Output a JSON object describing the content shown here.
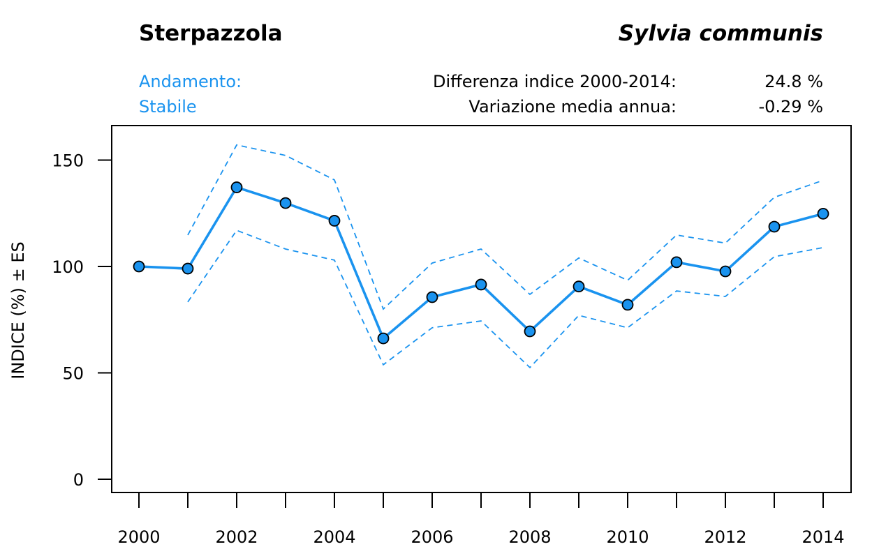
{
  "header": {
    "common_name": "Sterpazzola",
    "scientific_name": "Sylvia communis",
    "trend_label": "Andamento:",
    "trend_value": "Stabile",
    "stat1_label": "Differenza indice 2000-2014:",
    "stat1_value": "24.8 %",
    "stat2_label": "Variazione media annua:",
    "stat2_value": "-0.29 %"
  },
  "colors": {
    "accent": "#1a93ef",
    "marker_stroke": "#000000"
  },
  "chart_data": {
    "type": "line",
    "title": "Sterpazzola — Sylvia communis",
    "xlabel": "",
    "ylabel": "INDICE (%) ± ES",
    "x": [
      2000,
      2001,
      2002,
      2003,
      2004,
      2005,
      2006,
      2007,
      2008,
      2009,
      2010,
      2011,
      2012,
      2013,
      2014
    ],
    "xlim": [
      2000,
      2014
    ],
    "ylim": [
      0,
      160
    ],
    "x_ticks": [
      2000,
      2001,
      2002,
      2003,
      2004,
      2005,
      2006,
      2007,
      2008,
      2009,
      2010,
      2011,
      2012,
      2013,
      2014
    ],
    "x_tick_labels": [
      "2000",
      "2002",
      "2004",
      "2006",
      "2008",
      "2010",
      "2012",
      "2014"
    ],
    "x_tick_label_values": [
      2000,
      2002,
      2004,
      2006,
      2008,
      2010,
      2012,
      2014
    ],
    "y_ticks": [
      0,
      50,
      100,
      150
    ],
    "y_tick_labels": [
      "0",
      "50",
      "100",
      "150"
    ],
    "grid": false,
    "legend": "none",
    "series": [
      {
        "name": "Indice",
        "style": "solid-with-markers",
        "values": [
          100,
          99.0,
          137.2,
          129.8,
          121.5,
          66.2,
          85.6,
          91.5,
          69.5,
          90.6,
          82.0,
          102.0,
          97.7,
          118.7,
          124.8
        ]
      },
      {
        "name": "Indice + ES",
        "style": "dashed",
        "values": [
          null,
          114.8,
          157.1,
          152.2,
          140.7,
          80.0,
          101.6,
          108.2,
          86.9,
          104.0,
          93.5,
          114.8,
          111.0,
          132.5,
          140.5
        ]
      },
      {
        "name": "Indice - ES",
        "style": "dashed",
        "values": [
          null,
          83.3,
          117.0,
          108.2,
          103.0,
          53.8,
          71.2,
          74.4,
          52.5,
          77.0,
          71.2,
          88.5,
          85.9,
          104.6,
          108.9
        ]
      }
    ]
  }
}
